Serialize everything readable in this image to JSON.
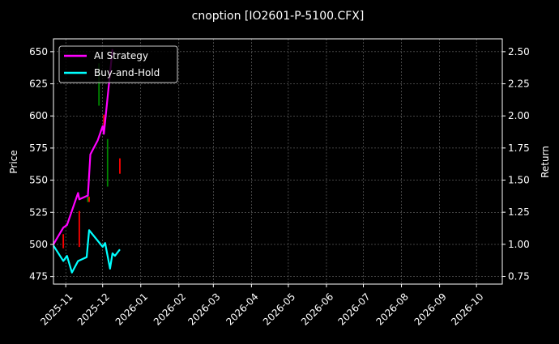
{
  "chart_data": {
    "type": "line",
    "title": "cnoption [IO2601-P-5100.CFX]",
    "ylabel": "Price",
    "y2label": "Return",
    "xlim": [
      "2025-10-22",
      "2026-10-22"
    ],
    "ylim": [
      469.1,
      660
    ],
    "y2lim": [
      0.69,
      2.6
    ],
    "grid": true,
    "legend_position": "top-left",
    "x_ticks": [
      "2025-11",
      "2025-12",
      "2026-01",
      "2026-02",
      "2026-03",
      "2026-04",
      "2026-05",
      "2026-06",
      "2026-07",
      "2026-08",
      "2026-09",
      "2026-10"
    ],
    "y_ticks": [
      475,
      500,
      525,
      550,
      575,
      600,
      625,
      650
    ],
    "y2_ticks": [
      "0.75",
      "1.00",
      "1.25",
      "1.50",
      "1.75",
      "2.00",
      "2.25",
      "2.50"
    ],
    "series": [
      {
        "name": "AI Strategy",
        "axis": "right",
        "color": "#ff00ff",
        "x": [
          "2025-10-22",
          "2025-10-30",
          "2025-11-02",
          "2025-11-11",
          "2025-11-12",
          "2025-11-19",
          "2025-11-21",
          "2025-11-27",
          "2025-12-01",
          "2025-12-02",
          "2025-12-09"
        ],
        "y": [
          1.0,
          1.13,
          1.15,
          1.4,
          1.35,
          1.38,
          1.7,
          1.81,
          1.92,
          1.86,
          2.52
        ]
      },
      {
        "name": "Buy-and-Hold",
        "axis": "right",
        "color": "#00ffff",
        "x": [
          "2025-10-22",
          "2025-10-30",
          "2025-11-02",
          "2025-11-06",
          "2025-11-11",
          "2025-11-18",
          "2025-11-20",
          "2025-12-01",
          "2025-12-03",
          "2025-12-07",
          "2025-12-09",
          "2025-12-11",
          "2025-12-15"
        ],
        "y": [
          0.99,
          0.87,
          0.91,
          0.78,
          0.87,
          0.9,
          1.11,
          0.98,
          1.01,
          0.81,
          0.93,
          0.91,
          0.96
        ]
      }
    ],
    "price_bars": [
      {
        "x": "2025-10-30",
        "low": 497,
        "high": 508,
        "color": "#ff0000"
      },
      {
        "x": "2025-11-12",
        "low": 498,
        "high": 526,
        "color": "#ff0000"
      },
      {
        "x": "2025-11-19",
        "low": 533,
        "high": 538,
        "color": "#00aa00"
      },
      {
        "x": "2025-11-20",
        "low": 533,
        "high": 537,
        "color": "#ff0000"
      },
      {
        "x": "2025-11-28",
        "low": 608,
        "high": 641,
        "color": "#008800"
      },
      {
        "x": "2025-12-02",
        "low": 586,
        "high": 601,
        "color": "#ff0000"
      },
      {
        "x": "2025-12-05",
        "low": 545,
        "high": 582,
        "color": "#008800"
      },
      {
        "x": "2025-12-15",
        "low": 555,
        "high": 567,
        "color": "#ff0000"
      }
    ]
  }
}
